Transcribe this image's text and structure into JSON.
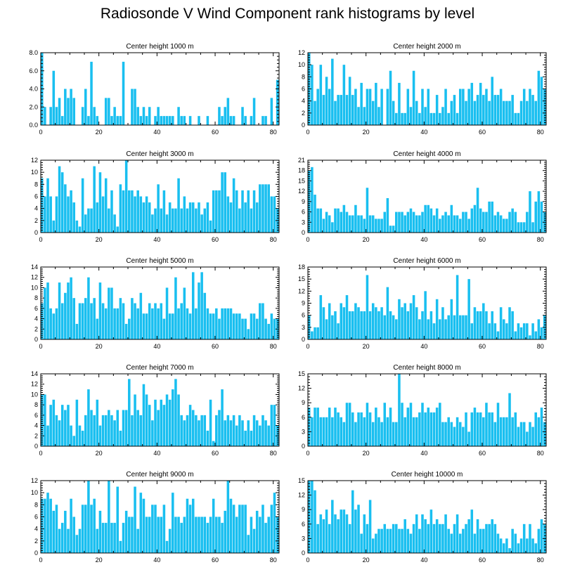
{
  "title": "Radiosonde V Wind Component rank histograms by level",
  "colors": {
    "bar": "#19bff0",
    "bar_edge": "#ffffff",
    "axis": "#000000"
  },
  "chart_data": [
    {
      "type": "bar",
      "title": "Center height 1000 m",
      "xlim": [
        0,
        82
      ],
      "xticks": [
        0,
        20,
        40,
        60,
        80
      ],
      "ylim": [
        0,
        8
      ],
      "yticks": [
        "0.0",
        "2.0",
        "4.0",
        "6.0",
        "8.0"
      ],
      "values": [
        8,
        2,
        0,
        2,
        6,
        2,
        3,
        1,
        4,
        3,
        4,
        3,
        0,
        0,
        2,
        4,
        1,
        7,
        2,
        1,
        0,
        0,
        3,
        3,
        1,
        2,
        1,
        1,
        7,
        0,
        0,
        4,
        4,
        2,
        1,
        2,
        1,
        2,
        0,
        1,
        2,
        1,
        1,
        1,
        1,
        1,
        0,
        2,
        1,
        1,
        0,
        1,
        0,
        0,
        1,
        0,
        0,
        1,
        0,
        0,
        0,
        2,
        1,
        2,
        3,
        1,
        1,
        0,
        0,
        2,
        1,
        0,
        1,
        3,
        0,
        0,
        1,
        1,
        0,
        3,
        0,
        5
      ]
    },
    {
      "type": "bar",
      "title": "Center height 2000 m",
      "xlim": [
        0,
        82
      ],
      "xticks": [
        0,
        20,
        40,
        60,
        80
      ],
      "ylim": [
        0,
        12
      ],
      "yticks": [
        "0",
        "2",
        "4",
        "6",
        "8",
        "10",
        "12"
      ],
      "values": [
        12,
        10,
        4,
        6,
        10,
        5,
        8,
        6,
        11,
        4,
        5,
        5,
        10,
        5,
        8,
        5,
        6,
        3,
        7,
        3,
        6,
        6,
        4,
        7,
        3,
        6,
        0,
        6,
        9,
        4,
        2,
        7,
        2,
        2,
        6,
        3,
        9,
        4,
        2,
        6,
        3,
        6,
        2,
        2,
        5,
        2,
        3,
        6,
        2,
        4,
        5,
        2,
        6,
        6,
        4,
        6,
        7,
        4,
        5,
        7,
        5,
        6,
        4,
        8,
        5,
        5,
        6,
        4,
        4,
        4,
        5,
        2,
        2,
        4,
        6,
        4,
        6,
        5,
        4,
        9,
        8,
        6
      ]
    },
    {
      "type": "bar",
      "title": "Center height 3000 m",
      "xlim": [
        0,
        82
      ],
      "xticks": [
        0,
        20,
        40,
        60,
        80
      ],
      "ylim": [
        0,
        12
      ],
      "yticks": [
        "0",
        "2",
        "4",
        "6",
        "8",
        "10",
        "12"
      ],
      "values": [
        9,
        6,
        9,
        6,
        2,
        6,
        11,
        10,
        8,
        6,
        7,
        5,
        2,
        1,
        9,
        3,
        4,
        4,
        11,
        5,
        10,
        6,
        9,
        4,
        7,
        3,
        1,
        8,
        7,
        12,
        7,
        7,
        6,
        7,
        6,
        5,
        6,
        5,
        3,
        4,
        8,
        4,
        7,
        3,
        5,
        4,
        4,
        9,
        4,
        6,
        4,
        5,
        5,
        4,
        5,
        3,
        4,
        5,
        2,
        7,
        7,
        7,
        10,
        10,
        6,
        5,
        9,
        7,
        4,
        7,
        5,
        7,
        4,
        7,
        5,
        8,
        8,
        8,
        8,
        6,
        6,
        4
      ]
    },
    {
      "type": "bar",
      "title": "Center height 4000 m",
      "xlim": [
        0,
        82
      ],
      "xticks": [
        0,
        20,
        40,
        60,
        80
      ],
      "ylim": [
        0,
        21
      ],
      "yticks": [
        "0",
        "3",
        "6",
        "9",
        "12",
        "15",
        "18",
        "21"
      ],
      "values": [
        18,
        19,
        11,
        7,
        7,
        4,
        6,
        5,
        3,
        7,
        7,
        6,
        8,
        6,
        5,
        5,
        8,
        5,
        5,
        4,
        13,
        5,
        5,
        4,
        4,
        4,
        6,
        10,
        2,
        2,
        6,
        6,
        6,
        5,
        6,
        7,
        6,
        5,
        5,
        6,
        8,
        8,
        7,
        5,
        7,
        4,
        5,
        6,
        5,
        8,
        5,
        5,
        4,
        6,
        6,
        4,
        7,
        8,
        13,
        7,
        6,
        6,
        9,
        9,
        5,
        6,
        5,
        4,
        4,
        6,
        7,
        6,
        3,
        3,
        3,
        6,
        12,
        3,
        9,
        12,
        9,
        6
      ]
    },
    {
      "type": "bar",
      "title": "Center height 5000 m",
      "xlim": [
        0,
        82
      ],
      "xticks": [
        0,
        20,
        40,
        60,
        80
      ],
      "ylim": [
        0,
        14
      ],
      "yticks": [
        "0",
        "2",
        "4",
        "6",
        "8",
        "10",
        "12",
        "14"
      ],
      "values": [
        7,
        10,
        11,
        6,
        5,
        6,
        11,
        7,
        9,
        11,
        12,
        8,
        3,
        7,
        7,
        8,
        12,
        7,
        8,
        4,
        11,
        7,
        6,
        10,
        10,
        6,
        6,
        8,
        7,
        3,
        4,
        8,
        7,
        6,
        9,
        5,
        5,
        7,
        6,
        7,
        6,
        7,
        4,
        10,
        5,
        5,
        12,
        6,
        7,
        10,
        6,
        5,
        13,
        6,
        11,
        13,
        9,
        6,
        5,
        5,
        6,
        4,
        6,
        6,
        6,
        6,
        5,
        5,
        5,
        4,
        4,
        2,
        5,
        5,
        4,
        7,
        7,
        4,
        3,
        5,
        4,
        4
      ]
    },
    {
      "type": "bar",
      "title": "Center height 6000 m",
      "xlim": [
        0,
        82
      ],
      "xticks": [
        0,
        20,
        40,
        60,
        80
      ],
      "ylim": [
        0,
        18
      ],
      "yticks": [
        "0",
        "3",
        "6",
        "9",
        "12",
        "15",
        "18"
      ],
      "values": [
        6,
        2,
        3,
        3,
        11,
        8,
        5,
        9,
        6,
        7,
        4,
        9,
        8,
        11,
        7,
        7,
        9,
        8,
        7,
        7,
        16,
        7,
        9,
        8,
        7,
        8,
        6,
        13,
        7,
        6,
        5,
        10,
        8,
        9,
        7,
        9,
        11,
        8,
        5,
        7,
        12,
        5,
        7,
        4,
        10,
        5,
        8,
        5,
        6,
        10,
        6,
        16,
        6,
        6,
        6,
        15,
        4,
        8,
        7,
        7,
        9,
        7,
        4,
        7,
        4,
        2,
        8,
        5,
        4,
        8,
        7,
        2,
        4,
        3,
        4,
        4,
        1,
        4,
        2,
        5,
        3,
        6
      ]
    },
    {
      "type": "bar",
      "title": "Center height 7000 m",
      "xlim": [
        0,
        82
      ],
      "xticks": [
        0,
        20,
        40,
        60,
        80
      ],
      "ylim": [
        0,
        14
      ],
      "yticks": [
        "0",
        "2",
        "4",
        "6",
        "8",
        "10",
        "12",
        "14"
      ],
      "values": [
        10,
        10,
        4,
        8,
        9,
        6,
        5,
        8,
        7,
        8,
        4,
        2,
        9,
        4,
        3,
        6,
        11,
        7,
        6,
        9,
        4,
        6,
        6,
        7,
        6,
        5,
        7,
        3,
        7,
        7,
        13,
        6,
        10,
        7,
        6,
        12,
        10,
        8,
        5,
        9,
        7,
        9,
        8,
        10,
        9,
        11,
        13,
        10,
        6,
        5,
        6,
        8,
        7,
        6,
        5,
        6,
        6,
        3,
        9,
        1,
        6,
        7,
        11,
        5,
        6,
        5,
        6,
        4,
        6,
        5,
        3,
        5,
        3,
        6,
        5,
        4,
        6,
        5,
        4,
        8,
        8,
        4
      ]
    },
    {
      "type": "bar",
      "title": "Center height 8000 m",
      "xlim": [
        0,
        82
      ],
      "xticks": [
        0,
        20,
        40,
        60,
        80
      ],
      "ylim": [
        0,
        15
      ],
      "yticks": [
        "0",
        "3",
        "6",
        "9",
        "12",
        "15"
      ],
      "values": [
        8,
        6,
        8,
        8,
        6,
        6,
        6,
        8,
        6,
        8,
        7,
        6,
        5,
        9,
        9,
        7,
        5,
        7,
        7,
        6,
        9,
        7,
        5,
        8,
        6,
        5,
        9,
        6,
        8,
        5,
        5,
        15,
        9,
        6,
        8,
        9,
        6,
        6,
        7,
        9,
        7,
        8,
        7,
        7,
        8,
        9,
        5,
        5,
        6,
        5,
        4,
        6,
        5,
        4,
        7,
        3,
        7,
        8,
        7,
        7,
        6,
        9,
        7,
        7,
        5,
        9,
        6,
        6,
        6,
        11,
        6,
        7,
        4,
        5,
        5,
        3,
        5,
        4,
        7,
        6,
        8,
        5
      ]
    },
    {
      "type": "bar",
      "title": "Center height 9000 m",
      "xlim": [
        0,
        82
      ],
      "xticks": [
        0,
        20,
        40,
        60,
        80
      ],
      "ylim": [
        0,
        12
      ],
      "yticks": [
        "0",
        "2",
        "4",
        "6",
        "8",
        "10",
        "12"
      ],
      "values": [
        9,
        9,
        10,
        9,
        7,
        8,
        4,
        5,
        7,
        4,
        9,
        6,
        3,
        4,
        8,
        8,
        12,
        8,
        9,
        4,
        7,
        5,
        5,
        12,
        5,
        5,
        11,
        2,
        5,
        7,
        6,
        6,
        11,
        4,
        10,
        9,
        6,
        6,
        8,
        8,
        6,
        6,
        8,
        2,
        4,
        10,
        6,
        6,
        5,
        6,
        9,
        8,
        9,
        6,
        6,
        6,
        6,
        5,
        6,
        9,
        6,
        6,
        5,
        7,
        12,
        9,
        8,
        6,
        8,
        8,
        8,
        3,
        6,
        4,
        7,
        6,
        8,
        5,
        6,
        8,
        10,
        6
      ]
    },
    {
      "type": "bar",
      "title": "Center height 10000 m",
      "xlim": [
        0,
        82
      ],
      "xticks": [
        0,
        20,
        40,
        60,
        80
      ],
      "ylim": [
        0,
        15
      ],
      "yticks": [
        "0",
        "3",
        "6",
        "9",
        "12",
        "15"
      ],
      "values": [
        15,
        15,
        13,
        6,
        8,
        7,
        9,
        6,
        11,
        8,
        7,
        9,
        9,
        8,
        6,
        13,
        9,
        10,
        4,
        8,
        6,
        11,
        3,
        4,
        5,
        5,
        6,
        5,
        5,
        6,
        6,
        5,
        5,
        7,
        5,
        4,
        6,
        8,
        5,
        8,
        7,
        6,
        9,
        6,
        7,
        6,
        6,
        8,
        5,
        4,
        6,
        8,
        4,
        5,
        6,
        7,
        9,
        4,
        7,
        5,
        5,
        6,
        6,
        7,
        6,
        4,
        3,
        2,
        3,
        1,
        5,
        4,
        2,
        3,
        6,
        3,
        6,
        3,
        2,
        5,
        7,
        6
      ]
    }
  ]
}
